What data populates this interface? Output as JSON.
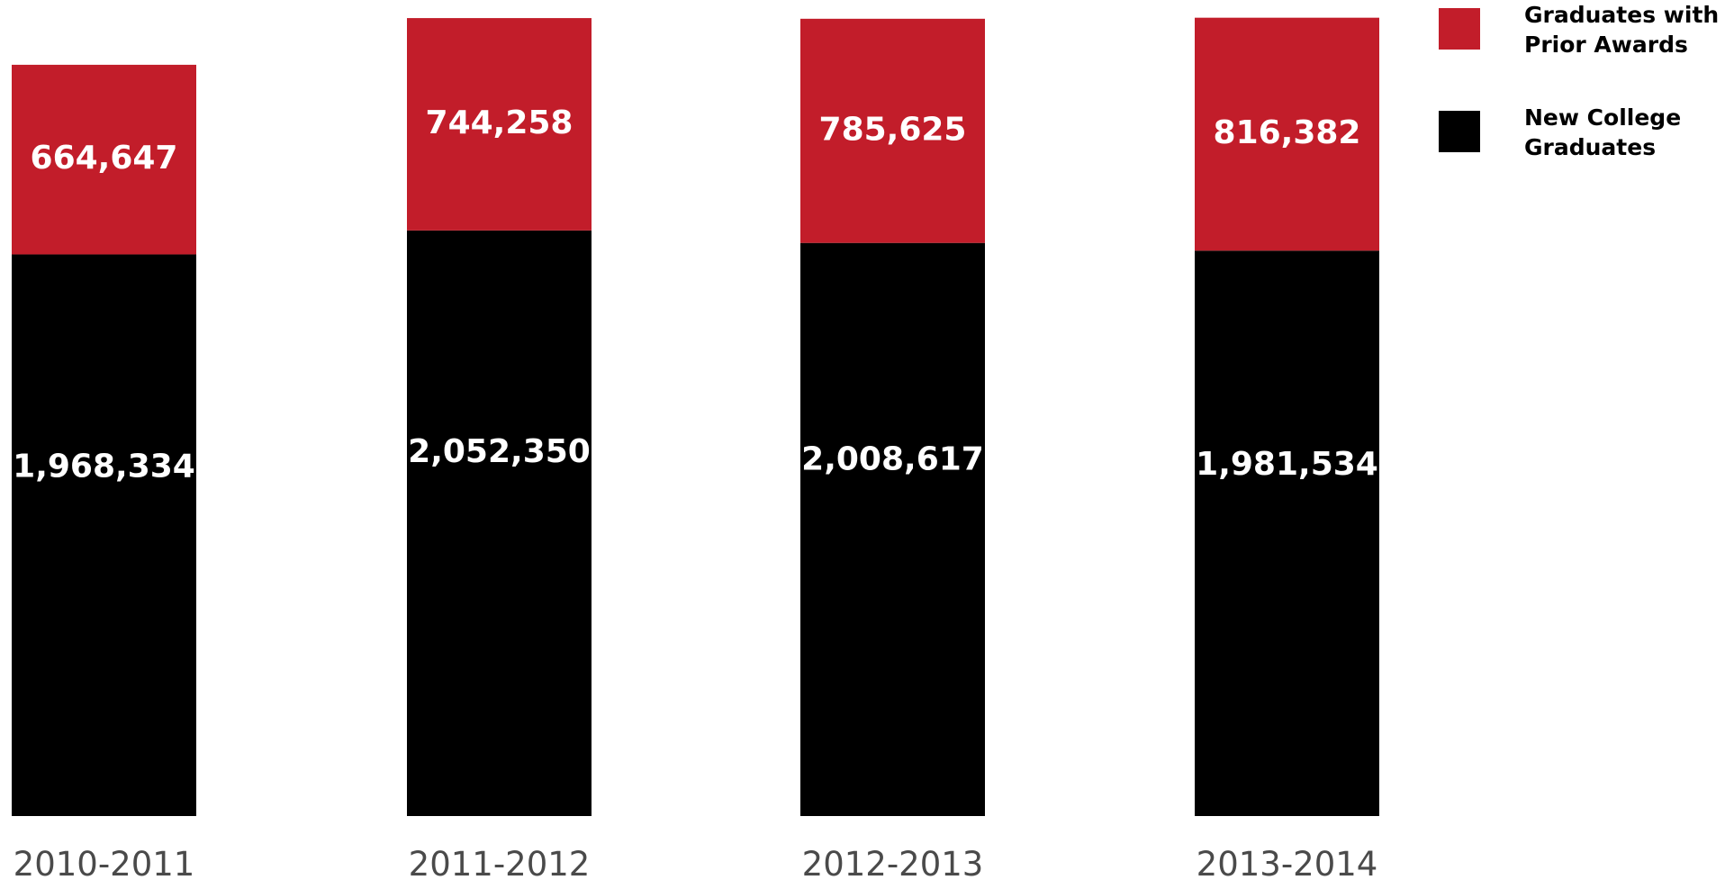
{
  "chart_data": {
    "type": "bar",
    "stacked": true,
    "title": "",
    "xlabel": "",
    "ylabel": "",
    "categories": [
      "2010-2011",
      "2011-2012",
      "2012-2013",
      "2013-2014"
    ],
    "series": [
      {
        "name": "New College Graduates",
        "values": [
          1968334,
          2052350,
          2008617,
          1981534
        ],
        "labels": [
          "1,968,334",
          "2,052,350",
          "2,008,617",
          "1,981,534"
        ],
        "color": "#000000"
      },
      {
        "name": "Graduates with Prior Awards",
        "values": [
          664647,
          744258,
          785625,
          816382
        ],
        "labels": [
          "664,647",
          "744,258",
          "785,625",
          "816,382"
        ],
        "color": "#c21d2a"
      }
    ],
    "ylim": [
      0,
      2860000
    ],
    "grid": false,
    "legend_position": "top-right",
    "legend": [
      {
        "lines": [
          "Graduates with",
          "Prior Awards"
        ],
        "color": "#c21d2a"
      },
      {
        "lines": [
          "New College",
          "Graduates"
        ],
        "color": "#000000"
      }
    ]
  }
}
